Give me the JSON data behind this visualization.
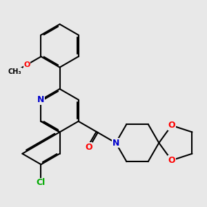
{
  "bg_color": "#e8e8e8",
  "bond_color": "#000000",
  "bond_width": 1.5,
  "dbo": 0.055,
  "atom_colors": {
    "N": "#0000cc",
    "O": "#ff0000",
    "Cl": "#00aa00"
  },
  "font_size": 9,
  "fig_size": [
    3.0,
    3.0
  ],
  "dpi": 100
}
